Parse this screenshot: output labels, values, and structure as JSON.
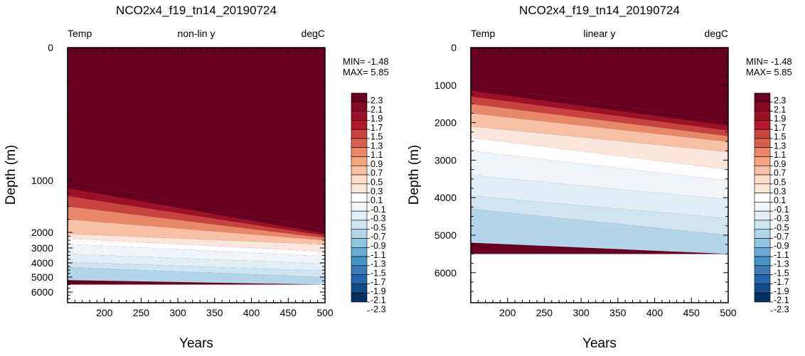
{
  "chart_data": [
    {
      "type": "heatmap",
      "title": "NCO2x4_f19_tn14_20190724",
      "left_label": "Temp",
      "center_label": "non-lin y",
      "right_label": "degC",
      "xlabel": "Years",
      "ylabel": "Depth (m)",
      "xlim": [
        150,
        500
      ],
      "xticks": [
        200,
        250,
        300,
        350,
        400,
        450,
        500
      ],
      "ylim": [
        0,
        6800
      ],
      "yticks": [
        0,
        1000,
        2000,
        3000,
        4000,
        5000,
        6000
      ],
      "y_scale": "nonlinear",
      "min_text": "MIN= -1.48",
      "max_text": "MAX=  5.85",
      "contour_levels": [
        -2.3,
        -2.1,
        -1.9,
        -1.7,
        -1.5,
        -1.3,
        -1.1,
        -0.9,
        -0.7,
        -0.5,
        -0.3,
        -0.1,
        0.1,
        0.3,
        0.5,
        0.7,
        0.9,
        1.1,
        1.3,
        1.5,
        1.7,
        1.9,
        2.1,
        2.3
      ],
      "level_labels": [
        "2.3",
        "2.1",
        "1.9",
        "1.7",
        "1.5",
        "1.3",
        "1.1",
        "0.9",
        "0.7",
        "0.5",
        "0.3",
        "0.1",
        "-0.1",
        "-0.3",
        "-0.5",
        "-0.7",
        "-0.9",
        "-1.1",
        "-1.3",
        "-1.5",
        "-1.7",
        "-1.9",
        "-2.1",
        "-2.3"
      ],
      "ocean_floor_depth": 5500,
      "contour_depths": [
        {
          "level": 2.3,
          "start": 1000,
          "end": 1950
        },
        {
          "level": 1.9,
          "start": 1150,
          "end": 2080
        },
        {
          "level": 1.5,
          "start": 1300,
          "end": 2210
        },
        {
          "level": 1.1,
          "start": 1500,
          "end": 2360
        },
        {
          "level": 0.7,
          "start": 1750,
          "end": 2510
        },
        {
          "level": 0.3,
          "start": 2100,
          "end": 2780
        },
        {
          "level": 0.1,
          "start": 2400,
          "end": 3250
        },
        {
          "level": -0.1,
          "start": 2750,
          "end": 3550
        },
        {
          "level": -0.3,
          "start": 3400,
          "end": 4050
        },
        {
          "level": -0.5,
          "start": 3950,
          "end": 4550
        },
        {
          "level": -0.7,
          "start": 4300,
          "end": 5000
        },
        {
          "level": -0.9,
          "start": 5200,
          "end": 5500
        }
      ]
    },
    {
      "type": "heatmap",
      "title": "NCO2x4_f19_tn14_20190724",
      "left_label": "Temp",
      "center_label": "linear y",
      "right_label": "degC",
      "xlabel": "Years",
      "ylabel": "Depth (m)",
      "xlim": [
        150,
        500
      ],
      "xticks": [
        200,
        250,
        300,
        350,
        400,
        450,
        500
      ],
      "ylim": [
        0,
        6800
      ],
      "yticks": [
        0,
        1000,
        2000,
        3000,
        4000,
        5000,
        6000
      ],
      "y_scale": "linear",
      "min_text": "MIN= -1.48",
      "max_text": "MAX=  5.85",
      "contour_levels": [
        -2.3,
        -2.1,
        -1.9,
        -1.7,
        -1.5,
        -1.3,
        -1.1,
        -0.9,
        -0.7,
        -0.5,
        -0.3,
        -0.1,
        0.1,
        0.3,
        0.5,
        0.7,
        0.9,
        1.1,
        1.3,
        1.5,
        1.7,
        1.9,
        2.1,
        2.3
      ],
      "level_labels": [
        "2.3",
        "2.1",
        "1.9",
        "1.7",
        "1.5",
        "1.3",
        "1.1",
        "0.9",
        "0.7",
        "0.5",
        "0.3",
        "0.1",
        "-0.1",
        "-0.3",
        "-0.5",
        "-0.7",
        "-0.9",
        "-1.1",
        "-1.3",
        "-1.5",
        "-1.7",
        "-1.9",
        "-2.1",
        "-2.3"
      ],
      "ocean_floor_depth": 5500,
      "contour_depths": [
        {
          "level": 2.3,
          "start": 1000,
          "end": 1950
        },
        {
          "level": 1.9,
          "start": 1150,
          "end": 2080
        },
        {
          "level": 1.5,
          "start": 1300,
          "end": 2210
        },
        {
          "level": 1.1,
          "start": 1500,
          "end": 2360
        },
        {
          "level": 0.7,
          "start": 1750,
          "end": 2510
        },
        {
          "level": 0.3,
          "start": 2100,
          "end": 2780
        },
        {
          "level": 0.1,
          "start": 2400,
          "end": 3250
        },
        {
          "level": -0.1,
          "start": 2750,
          "end": 3550
        },
        {
          "level": -0.3,
          "start": 3400,
          "end": 4050
        },
        {
          "level": -0.5,
          "start": 3950,
          "end": 4550
        },
        {
          "level": -0.7,
          "start": 4300,
          "end": 5000
        },
        {
          "level": -0.9,
          "start": 5200,
          "end": 5500
        }
      ]
    }
  ],
  "colormap": [
    "#053061",
    "#134c87",
    "#2166ac",
    "#3a7bb8",
    "#4393c3",
    "#6aabd3",
    "#92c5de",
    "#b2d6e8",
    "#d1e5f0",
    "#e2eef5",
    "#eef4f8",
    "#ffffff",
    "#fbe6dc",
    "#fddbc7",
    "#f8c0a4",
    "#f4a582",
    "#e8876a",
    "#d6604d",
    "#c7433f",
    "#b2182b",
    "#9c1028",
    "#870824",
    "#67001f"
  ]
}
